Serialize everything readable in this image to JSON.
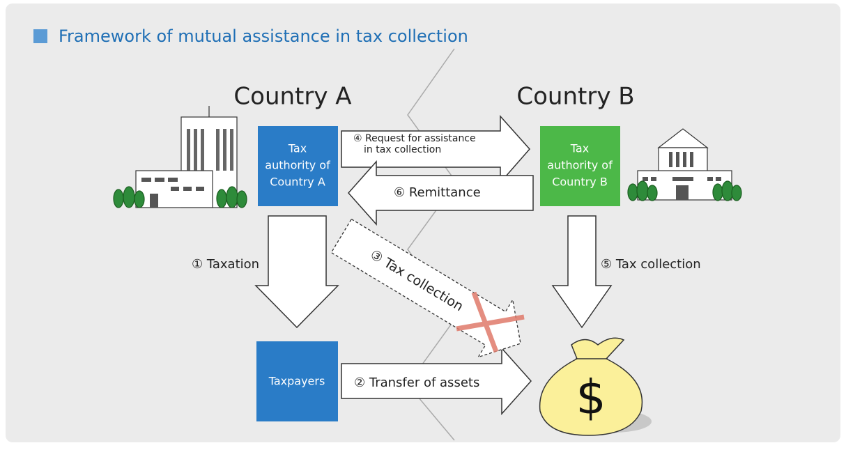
{
  "header": {
    "title": "Framework of mutual assistance in tax collection"
  },
  "countries": [
    "Country A",
    "Country B"
  ],
  "nodes": [
    {
      "lines": [
        "Tax",
        "authority of",
        "Country A"
      ]
    },
    {
      "lines": [
        "Taxpayers"
      ]
    },
    {
      "lines": [
        "Tax",
        "authority of",
        "Country B"
      ]
    }
  ],
  "arrows": [
    {
      "lines": [
        "① Taxation"
      ]
    },
    {
      "lines": [
        "② Transfer of assets"
      ]
    },
    {
      "lines": [
        "③ Tax collection"
      ]
    },
    {
      "lines": [
        "④ Request for assistance",
        "in tax collection"
      ]
    },
    {
      "lines": [
        "⑤ Tax collection"
      ]
    },
    {
      "lines": [
        "⑥ Remittance"
      ]
    }
  ],
  "money_symbol": "$"
}
